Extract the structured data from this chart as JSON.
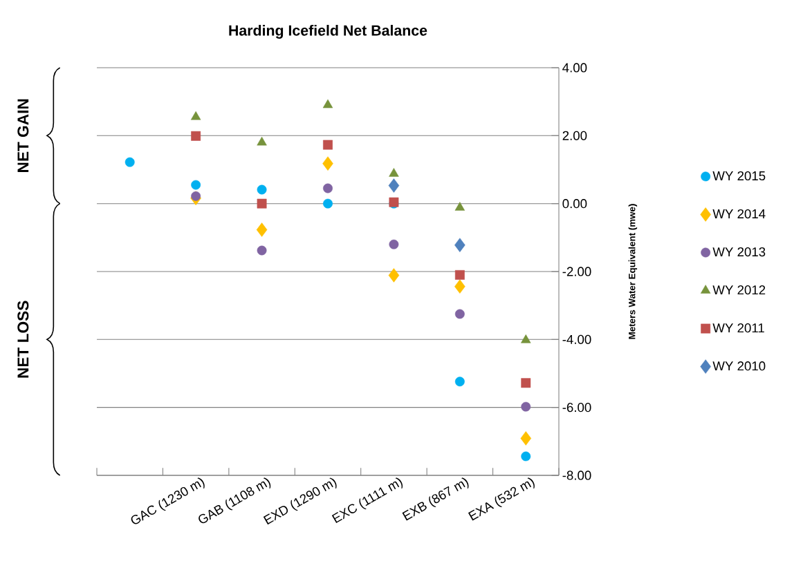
{
  "chart_data": {
    "type": "scatter",
    "title": "Harding Icefield Net Balance",
    "ylabel": "Meters Water Equivalent  (mwe)",
    "categories": [
      null,
      "GAC (1230 m)",
      "GAB (1108 m)",
      "EXD (1290 m)",
      "EXC (1111 m)",
      "EXB (867 m)",
      "EXA (532 m)"
    ],
    "series": [
      {
        "name": "WY 2015",
        "color": "#00b0f0",
        "marker": "circle",
        "values": [
          1.22,
          0.55,
          0.41,
          0.0,
          0.0,
          -5.24,
          -7.44
        ]
      },
      {
        "name": "WY 2014",
        "color": "#ffc000",
        "marker": "diamond",
        "values": [
          null,
          0.16,
          -0.77,
          1.18,
          -2.11,
          -2.44,
          -6.91
        ]
      },
      {
        "name": "WY 2013",
        "color": "#8064a2",
        "marker": "circle",
        "values": [
          null,
          0.22,
          -1.38,
          0.45,
          -1.2,
          -3.25,
          -5.98
        ]
      },
      {
        "name": "WY 2012",
        "color": "#77933c",
        "marker": "triangle",
        "values": [
          null,
          2.55,
          1.8,
          2.9,
          0.88,
          -0.12,
          -4.02
        ]
      },
      {
        "name": "WY 2011",
        "color": "#c0504d",
        "marker": "square",
        "values": [
          null,
          1.99,
          0.0,
          1.73,
          0.04,
          -2.1,
          -5.28
        ]
      },
      {
        "name": "WY 2010",
        "color": "#4f81bd",
        "marker": "diamond",
        "values": [
          null,
          null,
          null,
          null,
          0.53,
          -1.22,
          null
        ]
      }
    ],
    "ylim": [
      -8,
      4
    ],
    "yticks": [
      {
        "value": -8,
        "label": "-8.00"
      },
      {
        "value": -6,
        "label": "-6.00"
      },
      {
        "value": -4,
        "label": "-4.00"
      },
      {
        "value": -2,
        "label": "-2.00"
      },
      {
        "value": 0,
        "label": "0.00"
      },
      {
        "value": 2,
        "label": "2.00"
      },
      {
        "value": 4,
        "label": "4.00"
      }
    ],
    "grid": "y",
    "legend": "right",
    "annotations": [
      "NET GAIN",
      "NET LOSS"
    ]
  }
}
